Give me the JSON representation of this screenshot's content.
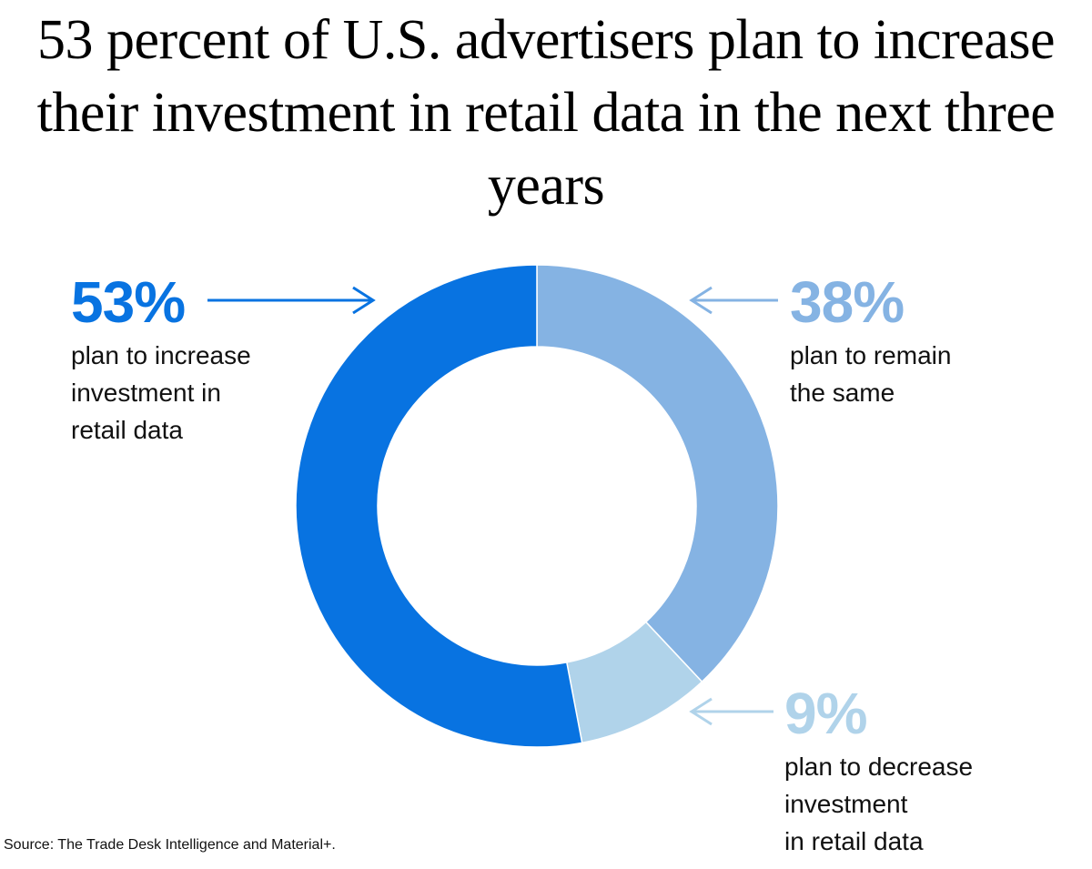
{
  "chart_data": {
    "type": "pie",
    "donut": true,
    "title": "53 percent of U.S. advertisers plan to increase their investment in retail data in the next three years",
    "categories": [
      "plan to remain\nthe same",
      "plan to decrease\ninvestment\nin retail data",
      "plan to increase\ninvestment in\nretail data"
    ],
    "values": [
      38,
      9,
      53
    ],
    "value_labels": [
      "38%",
      "9%",
      "53%"
    ],
    "colors": [
      "#85b3e3",
      "#b0d3ea",
      "#0873e1"
    ],
    "source": "Source: The Trade Desk Intelligence and Material+."
  }
}
